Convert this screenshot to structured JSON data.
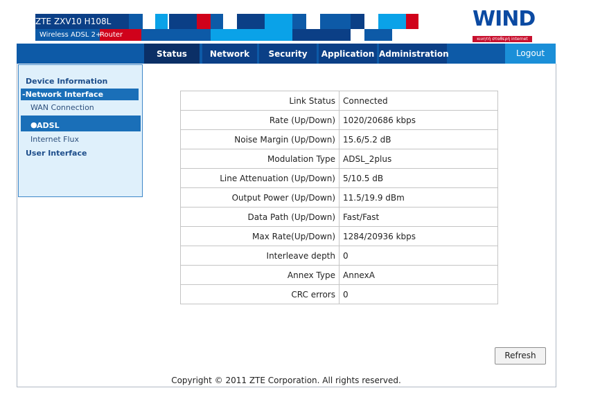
{
  "header": {
    "model": "ZTE ZXV10 H108L",
    "subtitle_white": "Wireless ADSL 2+",
    "subtitle_red": "Router",
    "colors": {
      "dark_blue": "#0b3f86",
      "blue": "#0d5aa7",
      "light_blue": "#0aa2e8",
      "red": "#d0021b"
    }
  },
  "logo": {
    "name": "WIND",
    "tagline": "κινητή σταθερή internet"
  },
  "nav": {
    "tabs": [
      "Status",
      "Network",
      "Security",
      "Application",
      "Administration"
    ],
    "active": "Status",
    "logout": "Logout"
  },
  "sidebar": {
    "device_information": "Device Information",
    "network_interface": "-Network Interface",
    "wan_connection": "WAN Connection",
    "adsl": "ADSL",
    "internet_flux": "Internet Flux",
    "user_interface": "User Interface"
  },
  "adsl_table": [
    {
      "key": "Link Status",
      "value": "Connected"
    },
    {
      "key": "Rate (Up/Down)",
      "value": "1020/20686 kbps"
    },
    {
      "key": "Noise Margin (Up/Down)",
      "value": "15.6/5.2 dB"
    },
    {
      "key": "Modulation Type",
      "value": "ADSL_2plus"
    },
    {
      "key": "Line Attenuation (Up/Down)",
      "value": "5/10.5 dB"
    },
    {
      "key": "Output Power (Up/Down)",
      "value": "11.5/19.9 dBm"
    },
    {
      "key": "Data Path (Up/Down)",
      "value": "Fast/Fast"
    },
    {
      "key": "Max Rate(Up/Down)",
      "value": "1284/20936 kbps"
    },
    {
      "key": "Interleave depth",
      "value": "0"
    },
    {
      "key": "Annex Type",
      "value": "AnnexA"
    },
    {
      "key": "CRC errors",
      "value": "0"
    }
  ],
  "refresh_label": "Refresh",
  "footer": "Copyright © 2011 ZTE Corporation. All rights reserved."
}
